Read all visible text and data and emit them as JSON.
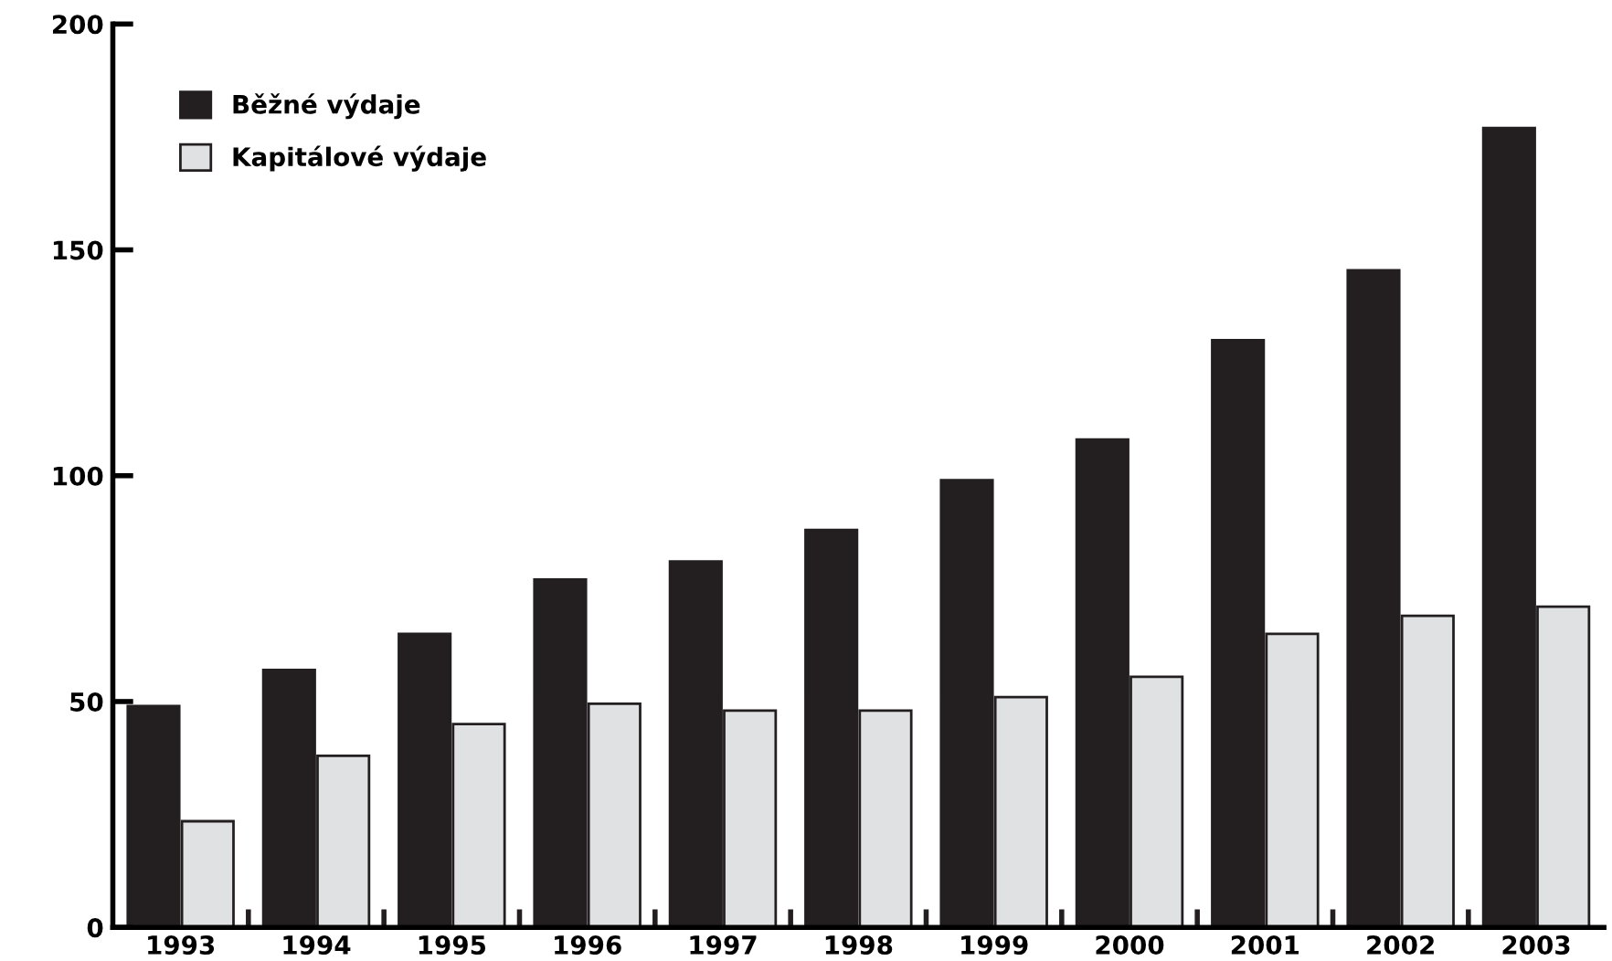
{
  "chart_data": {
    "type": "bar",
    "categories": [
      "1993",
      "1994",
      "1995",
      "1996",
      "1997",
      "1998",
      "1999",
      "2000",
      "2001",
      "2002",
      "2003"
    ],
    "series": [
      {
        "name": "Běžné výdaje",
        "color": "#231f20",
        "values": [
          49,
          57,
          65,
          77,
          81,
          88,
          99,
          108,
          130,
          145.5,
          177
        ]
      },
      {
        "name": "Kapitálové výdaje",
        "color": "#e0e1e3",
        "values": [
          23.5,
          38,
          45,
          49.5,
          48,
          48,
          51,
          55.5,
          65,
          69,
          71
        ]
      }
    ],
    "ylim": [
      0,
      200
    ],
    "yticks": [
      0,
      50,
      100,
      150,
      200
    ],
    "grid": false,
    "legend": "top left"
  }
}
